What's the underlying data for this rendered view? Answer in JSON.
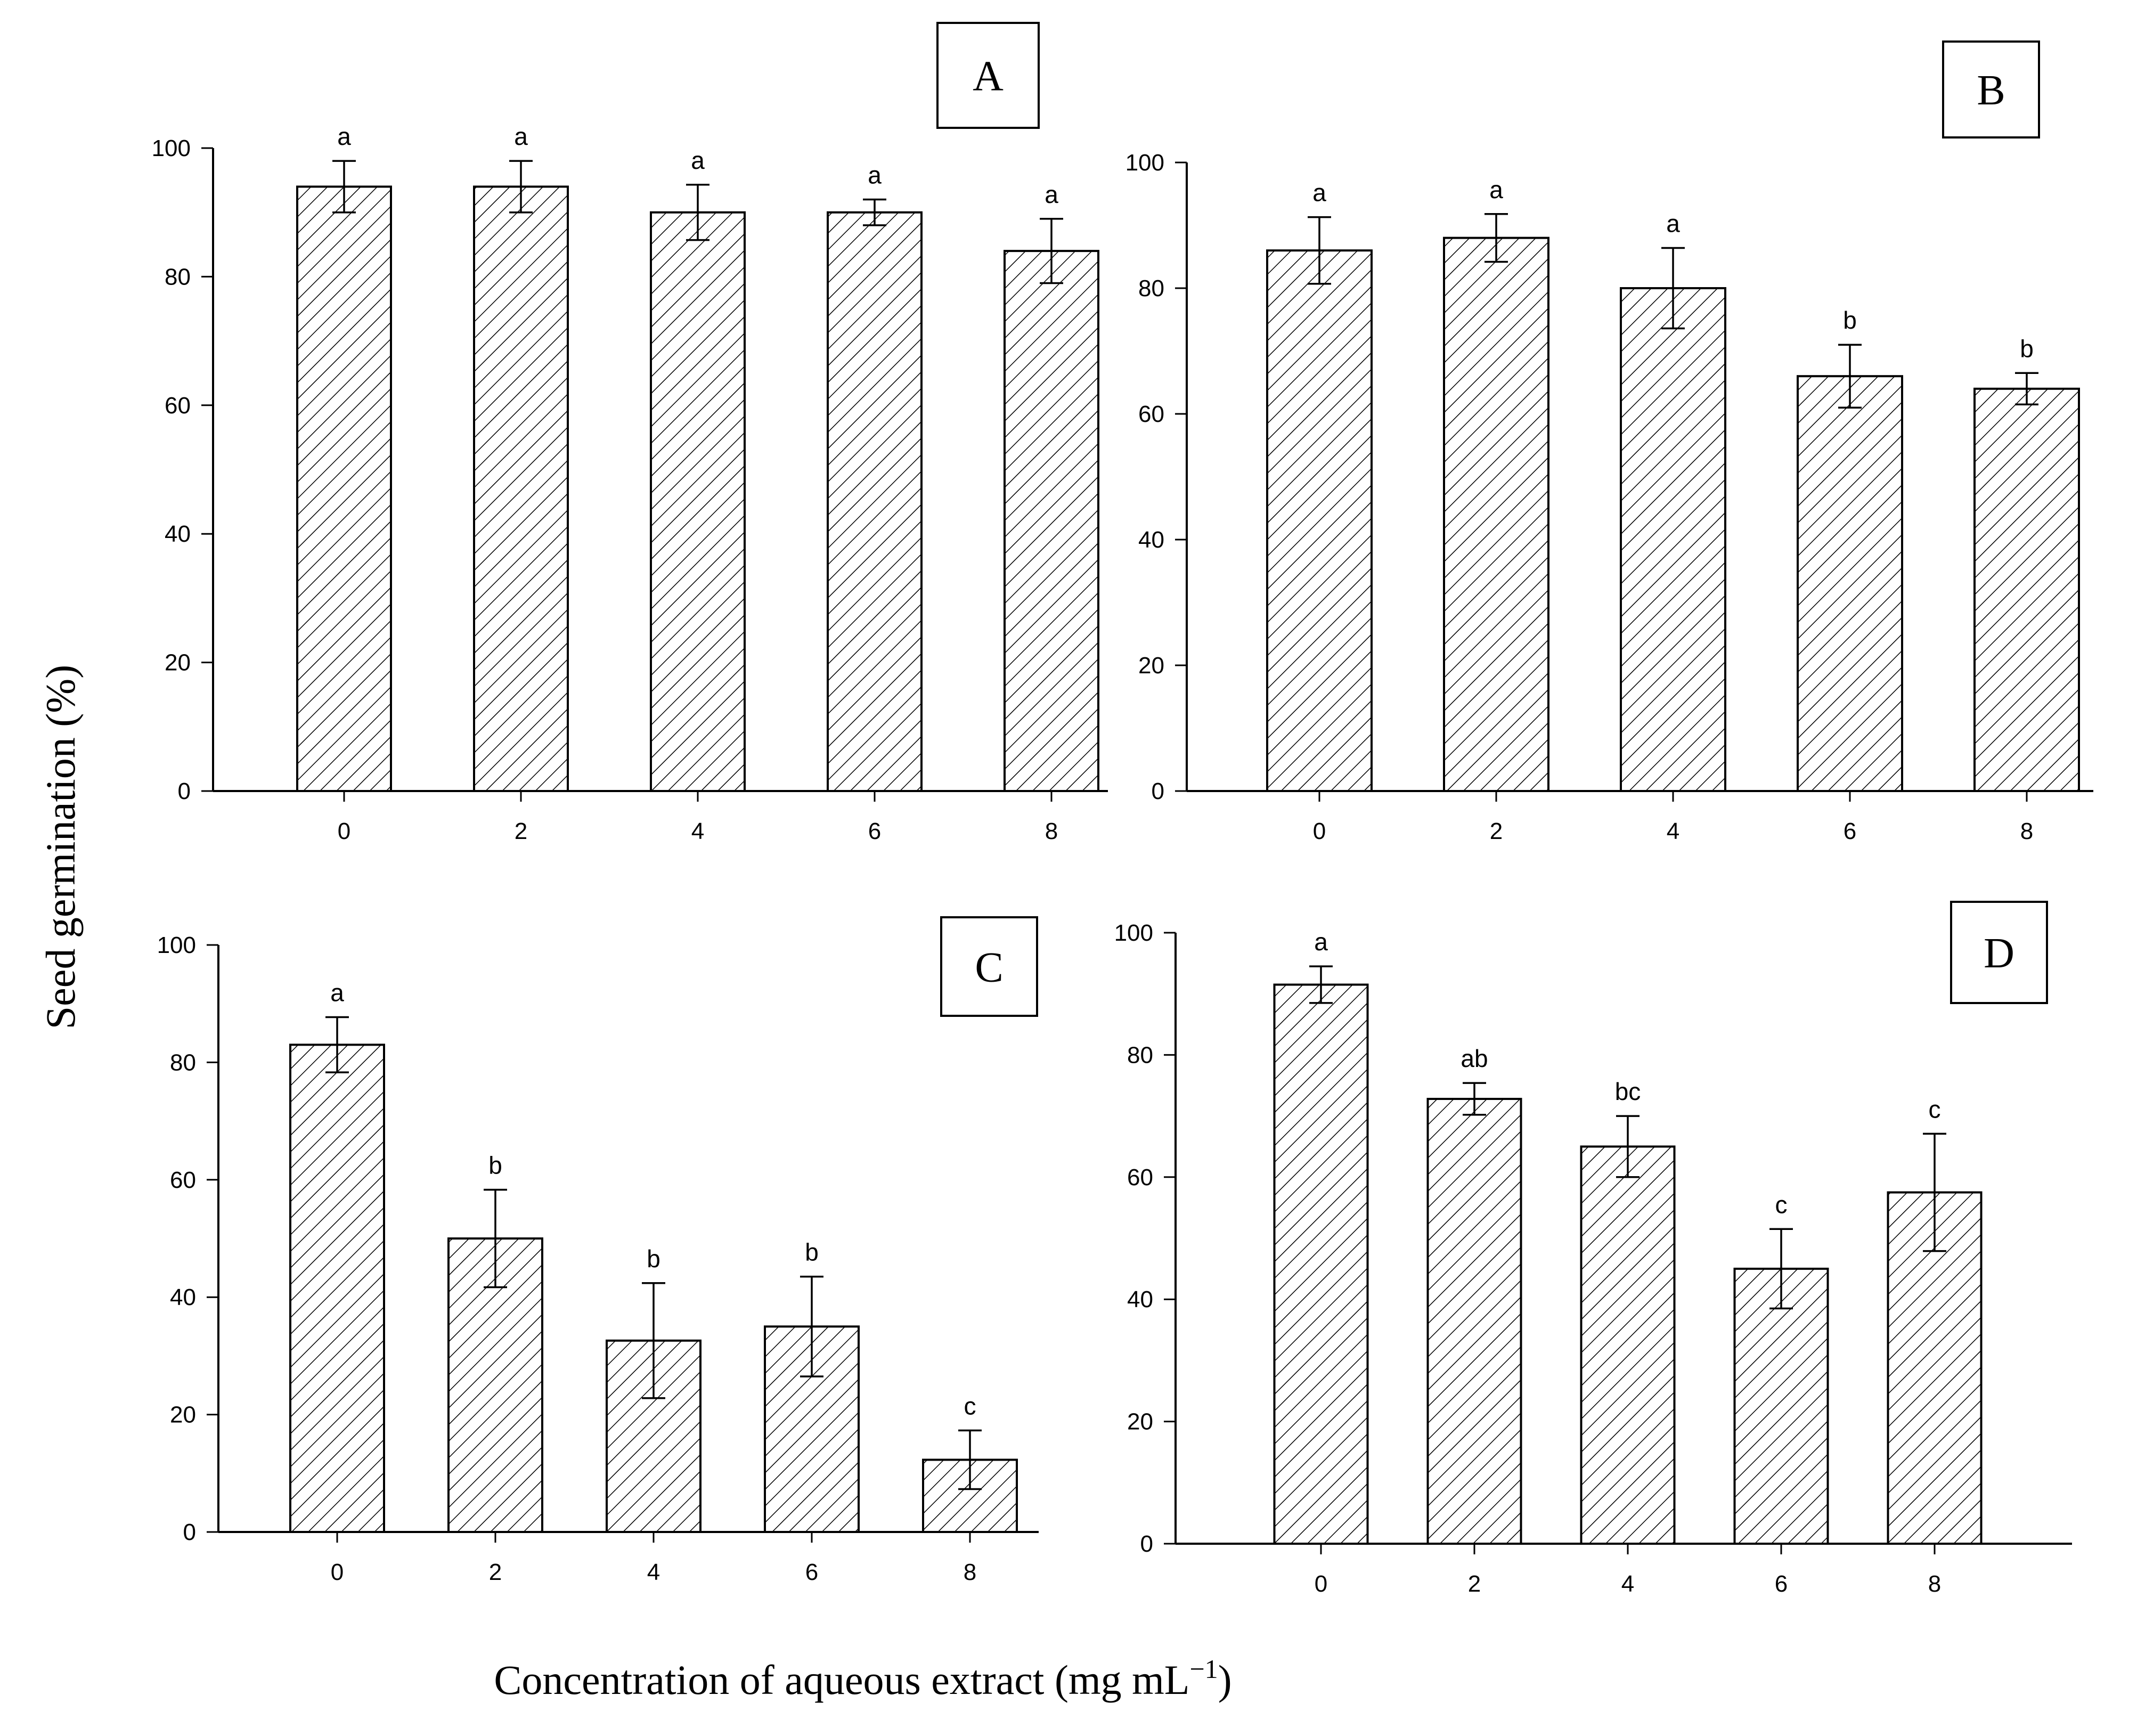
{
  "figure": {
    "ylabel": "Seed germination (%)",
    "xlabel_main": "Concentration of aqueous extract (mg mL",
    "xlabel_sup": "−1",
    "xlabel_end": ")"
  },
  "chart_data": [
    {
      "type": "bar",
      "panel_label": "A",
      "categories": [
        "0",
        "2",
        "4",
        "6",
        "8"
      ],
      "values": [
        94,
        94,
        90,
        90,
        84
      ],
      "errors": [
        4,
        4,
        4.3,
        2,
        5
      ],
      "letters": [
        "a",
        "a",
        "a",
        "a",
        "a"
      ],
      "yticks": [
        "0",
        "20",
        "40",
        "60",
        "80",
        "100"
      ],
      "ylim": [
        0,
        100
      ],
      "ylabel": "Seed germination (%)",
      "xlabel": "Concentration of aqueous extract (mg mL⁻¹)"
    },
    {
      "type": "bar",
      "panel_label": "B",
      "categories": [
        "0",
        "2",
        "4",
        "6",
        "8"
      ],
      "values": [
        86,
        88,
        80,
        66,
        64
      ],
      "errors": [
        5.3,
        3.8,
        6.4,
        5,
        2.5
      ],
      "letters": [
        "a",
        "a",
        "a",
        "b",
        "b"
      ],
      "yticks": [
        "0",
        "20",
        "40",
        "60",
        "80",
        "100"
      ],
      "ylim": [
        0,
        100
      ],
      "ylabel": "Seed germination (%)",
      "xlabel": "Concentration of aqueous extract (mg mL⁻¹)"
    },
    {
      "type": "bar",
      "panel_label": "C",
      "categories": [
        "0",
        "2",
        "4",
        "6",
        "8"
      ],
      "values": [
        83,
        50,
        32.6,
        35,
        12.3
      ],
      "errors": [
        4.7,
        8.3,
        9.8,
        8.5,
        5
      ],
      "letters": [
        "a",
        "b",
        "b",
        "b",
        "c"
      ],
      "yticks": [
        "0",
        "20",
        "40",
        "60",
        "80",
        "100"
      ],
      "ylim": [
        0,
        100
      ],
      "ylabel": "Seed germination (%)",
      "xlabel": "Concentration of aqueous extract (mg mL⁻¹)"
    },
    {
      "type": "bar",
      "panel_label": "D",
      "categories": [
        "0",
        "2",
        "4",
        "6",
        "8"
      ],
      "values": [
        91.5,
        72.8,
        65,
        45,
        57.5
      ],
      "errors": [
        3,
        2.6,
        5,
        6.5,
        9.6
      ],
      "letters": [
        "a",
        "ab",
        "bc",
        "c",
        "c"
      ],
      "yticks": [
        "0",
        "20",
        "40",
        "60",
        "80",
        "100"
      ],
      "ylim": [
        0,
        100
      ],
      "ylabel": "Seed germination (%)",
      "xlabel": "Concentration of aqueous extract (mg mL⁻¹)"
    }
  ]
}
